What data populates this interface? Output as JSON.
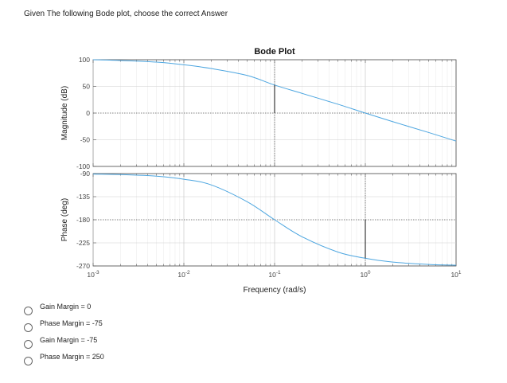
{
  "question": {
    "text": "Given The following Bode plot, choose the correct Answer"
  },
  "options": [
    {
      "label": "Gain Margin =  0"
    },
    {
      "label": "Phase Margin = -75"
    },
    {
      "label": "Gain Margin = -75"
    },
    {
      "label": "Phase Margin = 250"
    }
  ],
  "chart_data": {
    "type": "line",
    "title": "Bode Plot",
    "xlabel": "Frequency (rad/s)",
    "xscale": "log",
    "xlim": [
      0.001,
      10
    ],
    "x_ticks": [
      {
        "base": "10",
        "exp": "-3"
      },
      {
        "base": "10",
        "exp": "-2"
      },
      {
        "base": "10",
        "exp": "-1"
      },
      {
        "base": "10",
        "exp": "0"
      },
      {
        "base": "10",
        "exp": "1"
      }
    ],
    "grid": true,
    "line_color": "#4da6e0",
    "magnitude": {
      "ylabel": "Magnitude (dB)",
      "ylim": [
        -100,
        100
      ],
      "y_ticks": [
        "100",
        "50",
        "0",
        "-50",
        "-100"
      ],
      "x": [
        0.001,
        0.002,
        0.005,
        0.01,
        0.02,
        0.05,
        0.1,
        0.2,
        0.5,
        1,
        2,
        5,
        10
      ],
      "y": [
        100,
        98.6,
        95.5,
        90.5,
        83.5,
        70.5,
        52.5,
        37,
        16.5,
        0,
        -16,
        -36.5,
        -52.5
      ],
      "marker": {
        "x": 0.1,
        "y_from": 0,
        "y_to": 52.5
      }
    },
    "phase": {
      "ylabel": "Phase (deg)",
      "ylim": [
        -270,
        -90
      ],
      "y_ticks": [
        "-90",
        "-135",
        "-180",
        "-225",
        "-270"
      ],
      "x": [
        0.001,
        0.002,
        0.005,
        0.01,
        0.02,
        0.05,
        0.1,
        0.2,
        0.5,
        1,
        2,
        5,
        10
      ],
      "y": [
        -91,
        -92,
        -95,
        -101,
        -112,
        -145,
        -180,
        -213,
        -243,
        -255,
        -262.5,
        -267,
        -268.5
      ],
      "marker": {
        "x": 1,
        "y_from": -180,
        "y_to": -255
      }
    }
  }
}
